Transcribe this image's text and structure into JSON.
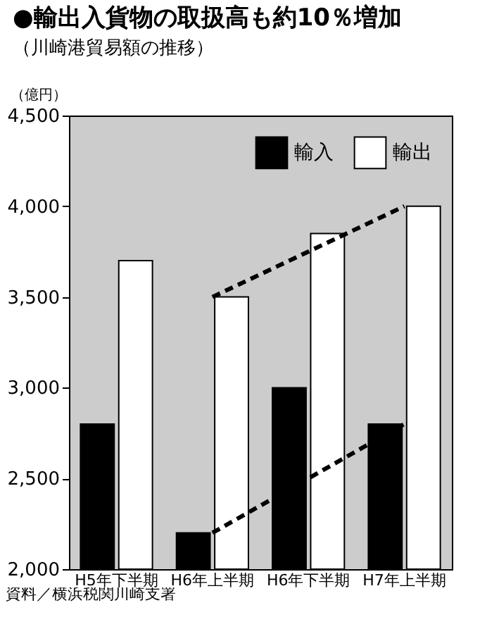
{
  "chart_data": {
    "type": "bar",
    "title": "●輸出入貨物の取扱高も約10％増加",
    "subtitle": "（川崎港貿易額の推移）",
    "ylabel": "（億円）",
    "categories": [
      "H5年下半期",
      "H6年上半期",
      "H6年下半期",
      "H7年上半期"
    ],
    "series": [
      {
        "name": "輸入",
        "color": "#000000",
        "values": [
          2800,
          2200,
          3000,
          2800
        ]
      },
      {
        "name": "輸出",
        "color": "#ffffff",
        "values": [
          3700,
          3500,
          3850,
          4000
        ]
      },
      {
        "type": "line",
        "color": "#000000",
        "x": [
          "H6年上半期",
          "H7年上半期"
        ],
        "values": [
          2200,
          2800
        ],
        "line_style": "dashed"
      },
      {
        "type": "line",
        "color": "#000000",
        "x": [
          "H6年上半期",
          "H7年上半期"
        ],
        "values": [
          3500,
          4000
        ],
        "line_style": "dashed"
      }
    ],
    "ylim": [
      2000,
      4500
    ],
    "yticks": [
      {
        "value": 2000,
        "label": "2,000"
      },
      {
        "value": 2500,
        "label": "2,500"
      },
      {
        "value": 3000,
        "label": "3,000"
      },
      {
        "value": 3500,
        "label": "3,500"
      },
      {
        "value": 4000,
        "label": "4,000"
      },
      {
        "value": 4500,
        "label": "4,500"
      }
    ],
    "grid": false,
    "legend": "top right",
    "marker": "none",
    "annotations": [
      "資料／横浜税関川崎支署"
    ]
  }
}
